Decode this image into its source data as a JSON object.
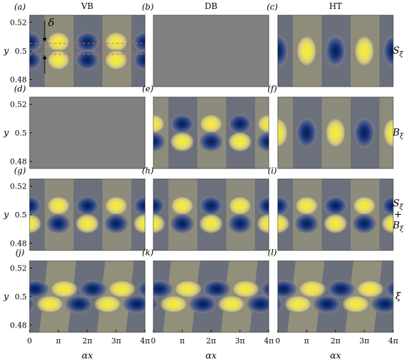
{
  "columns": [
    {
      "label": "VB"
    },
    {
      "label": "DB"
    },
    {
      "label": "HT"
    }
  ],
  "rows": [
    {
      "label": [
        "S_ξ"
      ]
    },
    {
      "label": [
        "B_ξ"
      ]
    },
    {
      "label": [
        "S_ξ",
        "+",
        "B_ξ"
      ]
    },
    {
      "label": [
        "ξ"
      ]
    }
  ],
  "panels": [
    {
      "tag": "(a)",
      "field": "S",
      "mode": "VB"
    },
    {
      "tag": "(b)",
      "field": "S",
      "mode": "DB"
    },
    {
      "tag": "(c)",
      "field": "S",
      "mode": "HT"
    },
    {
      "tag": "(d)",
      "field": "B",
      "mode": "VB"
    },
    {
      "tag": "(e)",
      "field": "B",
      "mode": "DB"
    },
    {
      "tag": "(f)",
      "field": "B",
      "mode": "HT"
    },
    {
      "tag": "(g)",
      "field": "S+B",
      "mode": "VB"
    },
    {
      "tag": "(h)",
      "field": "S+B",
      "mode": "DB"
    },
    {
      "tag": "(i)",
      "field": "S+B",
      "mode": "HT"
    },
    {
      "tag": "(j)",
      "field": "ξ",
      "mode": "VB"
    },
    {
      "tag": "(k)",
      "field": "ξ",
      "mode": "DB"
    },
    {
      "tag": "(l)",
      "field": "ξ",
      "mode": "HT"
    }
  ],
  "y_axis": {
    "label": "y",
    "ticks": [
      "0.52",
      "0.5",
      "0.48"
    ],
    "range": [
      0.475,
      0.525
    ]
  },
  "x_axis": {
    "label": "αx",
    "ticks": [
      "0",
      "π",
      "2π",
      "3π",
      "4π"
    ],
    "range_multiple_of_pi": [
      0,
      4
    ]
  },
  "annotation": {
    "delta": "δ"
  },
  "colors": {
    "background_field": "#808080",
    "positive_strong": "#f5ee2c",
    "positive_weak": "#aca571",
    "negative_strong": "#061a4a",
    "negative_weak": "#545d78",
    "dashed_line": "#e06050"
  }
}
